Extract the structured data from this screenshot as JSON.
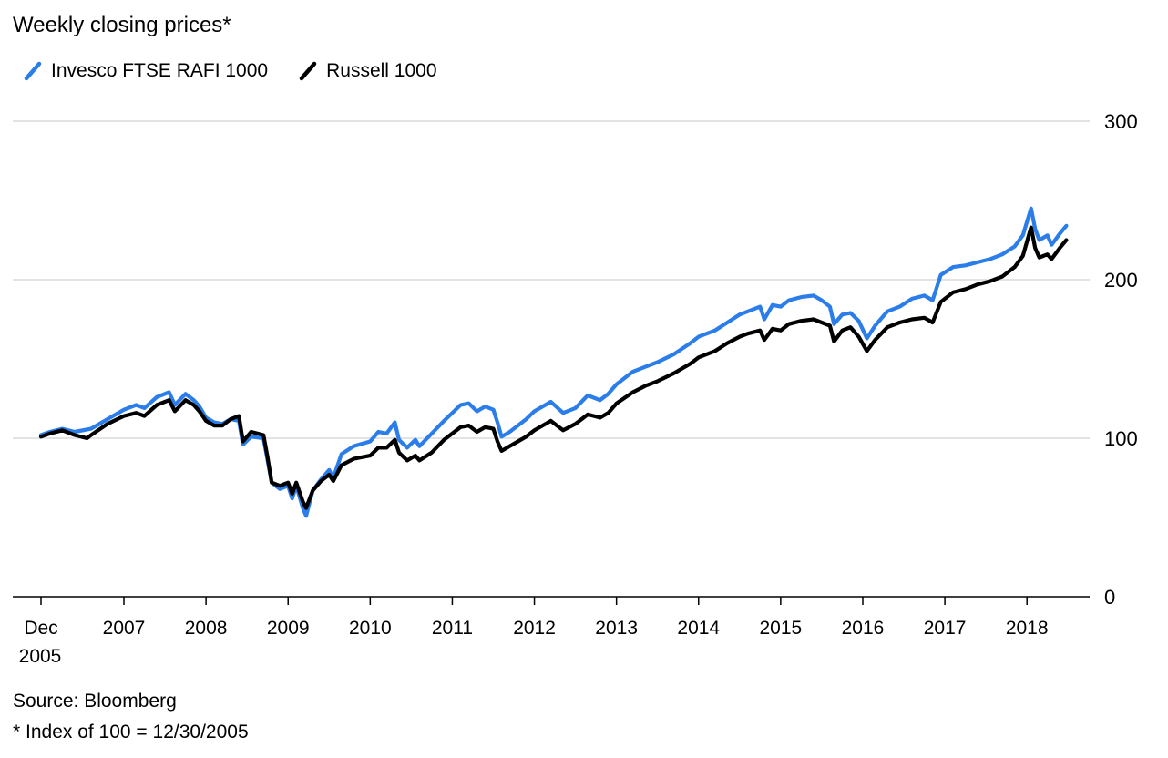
{
  "chart_data": {
    "type": "line",
    "subtitle": "Weekly closing prices*",
    "xlabel": "",
    "ylabel": "",
    "ylim": [
      0,
      300
    ],
    "yticks": [
      0,
      100,
      200,
      300
    ],
    "y_axis_side": "right",
    "grid": true,
    "legend_position": "top-left",
    "x_ticks": [
      {
        "year": 2005.99,
        "label": [
          "Dec",
          "2005"
        ]
      },
      {
        "year": 2007,
        "label": [
          "2007"
        ]
      },
      {
        "year": 2008,
        "label": [
          "2008"
        ]
      },
      {
        "year": 2009,
        "label": [
          "2009"
        ]
      },
      {
        "year": 2010,
        "label": [
          "2010"
        ]
      },
      {
        "year": 2011,
        "label": [
          "2011"
        ]
      },
      {
        "year": 2012,
        "label": [
          "2012"
        ]
      },
      {
        "year": 2013,
        "label": [
          "2013"
        ]
      },
      {
        "year": 2014,
        "label": [
          "2014"
        ]
      },
      {
        "year": 2015,
        "label": [
          "2015"
        ]
      },
      {
        "year": 2016,
        "label": [
          "2016"
        ]
      },
      {
        "year": 2017,
        "label": [
          "2017"
        ]
      },
      {
        "year": 2018,
        "label": [
          "2018"
        ]
      }
    ],
    "xlim": [
      2005.99,
      2018.5
    ],
    "series": [
      {
        "name": "Invesco FTSE RAFI 1000",
        "color": "#2b7de9",
        "points": [
          [
            2005.99,
            102
          ],
          [
            2006.1,
            104
          ],
          [
            2006.25,
            106
          ],
          [
            2006.4,
            104
          ],
          [
            2006.6,
            106
          ],
          [
            2006.8,
            112
          ],
          [
            2007.0,
            118
          ],
          [
            2007.15,
            121
          ],
          [
            2007.25,
            119
          ],
          [
            2007.4,
            126
          ],
          [
            2007.55,
            129
          ],
          [
            2007.62,
            121
          ],
          [
            2007.75,
            128
          ],
          [
            2007.85,
            124
          ],
          [
            2007.92,
            120
          ],
          [
            2008.0,
            113
          ],
          [
            2008.1,
            110
          ],
          [
            2008.2,
            109
          ],
          [
            2008.3,
            112
          ],
          [
            2008.4,
            111
          ],
          [
            2008.45,
            96
          ],
          [
            2008.55,
            101
          ],
          [
            2008.7,
            100
          ],
          [
            2008.75,
            86
          ],
          [
            2008.8,
            72
          ],
          [
            2008.9,
            68
          ],
          [
            2009.0,
            70
          ],
          [
            2009.05,
            62
          ],
          [
            2009.1,
            70
          ],
          [
            2009.18,
            56
          ],
          [
            2009.22,
            51
          ],
          [
            2009.3,
            67
          ],
          [
            2009.4,
            74
          ],
          [
            2009.5,
            80
          ],
          [
            2009.55,
            75
          ],
          [
            2009.65,
            90
          ],
          [
            2009.8,
            95
          ],
          [
            2010.0,
            98
          ],
          [
            2010.1,
            104
          ],
          [
            2010.2,
            103
          ],
          [
            2010.3,
            110
          ],
          [
            2010.35,
            99
          ],
          [
            2010.45,
            94
          ],
          [
            2010.55,
            99
          ],
          [
            2010.6,
            95
          ],
          [
            2010.75,
            103
          ],
          [
            2010.9,
            111
          ],
          [
            2011.0,
            116
          ],
          [
            2011.1,
            121
          ],
          [
            2011.2,
            122
          ],
          [
            2011.3,
            117
          ],
          [
            2011.4,
            120
          ],
          [
            2011.5,
            118
          ],
          [
            2011.55,
            110
          ],
          [
            2011.6,
            101
          ],
          [
            2011.7,
            104
          ],
          [
            2011.8,
            108
          ],
          [
            2011.9,
            112
          ],
          [
            2012.0,
            117
          ],
          [
            2012.2,
            123
          ],
          [
            2012.35,
            116
          ],
          [
            2012.5,
            119
          ],
          [
            2012.65,
            127
          ],
          [
            2012.8,
            124
          ],
          [
            2012.9,
            128
          ],
          [
            2013.0,
            134
          ],
          [
            2013.2,
            142
          ],
          [
            2013.35,
            145
          ],
          [
            2013.5,
            148
          ],
          [
            2013.7,
            153
          ],
          [
            2013.9,
            160
          ],
          [
            2014.0,
            164
          ],
          [
            2014.2,
            168
          ],
          [
            2014.35,
            173
          ],
          [
            2014.5,
            178
          ],
          [
            2014.6,
            180
          ],
          [
            2014.75,
            183
          ],
          [
            2014.8,
            175
          ],
          [
            2014.9,
            184
          ],
          [
            2015.0,
            183
          ],
          [
            2015.1,
            187
          ],
          [
            2015.25,
            189
          ],
          [
            2015.4,
            190
          ],
          [
            2015.5,
            187
          ],
          [
            2015.6,
            183
          ],
          [
            2015.65,
            172
          ],
          [
            2015.75,
            178
          ],
          [
            2015.85,
            179
          ],
          [
            2015.95,
            174
          ],
          [
            2016.05,
            163
          ],
          [
            2016.15,
            171
          ],
          [
            2016.3,
            180
          ],
          [
            2016.45,
            183
          ],
          [
            2016.6,
            188
          ],
          [
            2016.75,
            190
          ],
          [
            2016.85,
            187
          ],
          [
            2016.95,
            203
          ],
          [
            2017.1,
            208
          ],
          [
            2017.25,
            209
          ],
          [
            2017.4,
            211
          ],
          [
            2017.55,
            213
          ],
          [
            2017.7,
            216
          ],
          [
            2017.85,
            221
          ],
          [
            2017.95,
            228
          ],
          [
            2018.05,
            245
          ],
          [
            2018.1,
            232
          ],
          [
            2018.15,
            225
          ],
          [
            2018.25,
            228
          ],
          [
            2018.3,
            222
          ],
          [
            2018.4,
            229
          ],
          [
            2018.48,
            234
          ]
        ]
      },
      {
        "name": "Russell 1000",
        "color": "#000000",
        "points": [
          [
            2005.99,
            101
          ],
          [
            2006.1,
            103
          ],
          [
            2006.25,
            105
          ],
          [
            2006.4,
            102
          ],
          [
            2006.55,
            100
          ],
          [
            2006.6,
            102
          ],
          [
            2006.8,
            109
          ],
          [
            2007.0,
            114
          ],
          [
            2007.15,
            116
          ],
          [
            2007.25,
            114
          ],
          [
            2007.4,
            121
          ],
          [
            2007.55,
            124
          ],
          [
            2007.62,
            117
          ],
          [
            2007.75,
            124
          ],
          [
            2007.85,
            121
          ],
          [
            2007.92,
            117
          ],
          [
            2008.0,
            111
          ],
          [
            2008.1,
            108
          ],
          [
            2008.2,
            108
          ],
          [
            2008.3,
            112
          ],
          [
            2008.4,
            114
          ],
          [
            2008.45,
            98
          ],
          [
            2008.55,
            104
          ],
          [
            2008.7,
            102
          ],
          [
            2008.75,
            88
          ],
          [
            2008.8,
            72
          ],
          [
            2008.9,
            70
          ],
          [
            2009.0,
            72
          ],
          [
            2009.05,
            65
          ],
          [
            2009.1,
            72
          ],
          [
            2009.18,
            60
          ],
          [
            2009.22,
            56
          ],
          [
            2009.3,
            67
          ],
          [
            2009.4,
            73
          ],
          [
            2009.5,
            77
          ],
          [
            2009.55,
            73
          ],
          [
            2009.65,
            83
          ],
          [
            2009.8,
            87
          ],
          [
            2010.0,
            89
          ],
          [
            2010.1,
            94
          ],
          [
            2010.2,
            94
          ],
          [
            2010.3,
            99
          ],
          [
            2010.35,
            91
          ],
          [
            2010.45,
            86
          ],
          [
            2010.55,
            89
          ],
          [
            2010.6,
            86
          ],
          [
            2010.75,
            91
          ],
          [
            2010.9,
            99
          ],
          [
            2011.0,
            103
          ],
          [
            2011.1,
            107
          ],
          [
            2011.2,
            108
          ],
          [
            2011.3,
            104
          ],
          [
            2011.4,
            107
          ],
          [
            2011.5,
            106
          ],
          [
            2011.55,
            98
          ],
          [
            2011.6,
            92
          ],
          [
            2011.7,
            95
          ],
          [
            2011.8,
            98
          ],
          [
            2011.9,
            101
          ],
          [
            2012.0,
            105
          ],
          [
            2012.2,
            111
          ],
          [
            2012.35,
            105
          ],
          [
            2012.5,
            109
          ],
          [
            2012.65,
            115
          ],
          [
            2012.8,
            113
          ],
          [
            2012.9,
            116
          ],
          [
            2013.0,
            122
          ],
          [
            2013.2,
            129
          ],
          [
            2013.35,
            133
          ],
          [
            2013.5,
            136
          ],
          [
            2013.7,
            141
          ],
          [
            2013.9,
            147
          ],
          [
            2014.0,
            151
          ],
          [
            2014.2,
            155
          ],
          [
            2014.35,
            160
          ],
          [
            2014.5,
            164
          ],
          [
            2014.6,
            166
          ],
          [
            2014.75,
            168
          ],
          [
            2014.8,
            162
          ],
          [
            2014.9,
            169
          ],
          [
            2015.0,
            168
          ],
          [
            2015.1,
            172
          ],
          [
            2015.25,
            174
          ],
          [
            2015.4,
            175
          ],
          [
            2015.5,
            173
          ],
          [
            2015.6,
            171
          ],
          [
            2015.65,
            161
          ],
          [
            2015.75,
            168
          ],
          [
            2015.85,
            170
          ],
          [
            2015.95,
            164
          ],
          [
            2016.05,
            155
          ],
          [
            2016.15,
            162
          ],
          [
            2016.3,
            170
          ],
          [
            2016.45,
            173
          ],
          [
            2016.6,
            175
          ],
          [
            2016.75,
            176
          ],
          [
            2016.85,
            173
          ],
          [
            2016.95,
            186
          ],
          [
            2017.1,
            192
          ],
          [
            2017.25,
            194
          ],
          [
            2017.4,
            197
          ],
          [
            2017.55,
            199
          ],
          [
            2017.7,
            202
          ],
          [
            2017.85,
            208
          ],
          [
            2017.95,
            215
          ],
          [
            2018.05,
            233
          ],
          [
            2018.1,
            220
          ],
          [
            2018.15,
            214
          ],
          [
            2018.25,
            216
          ],
          [
            2018.3,
            213
          ],
          [
            2018.4,
            220
          ],
          [
            2018.48,
            225
          ]
        ]
      }
    ]
  },
  "source": "Source: Bloomberg",
  "note": "* Index of 100 = 12/30/2005"
}
